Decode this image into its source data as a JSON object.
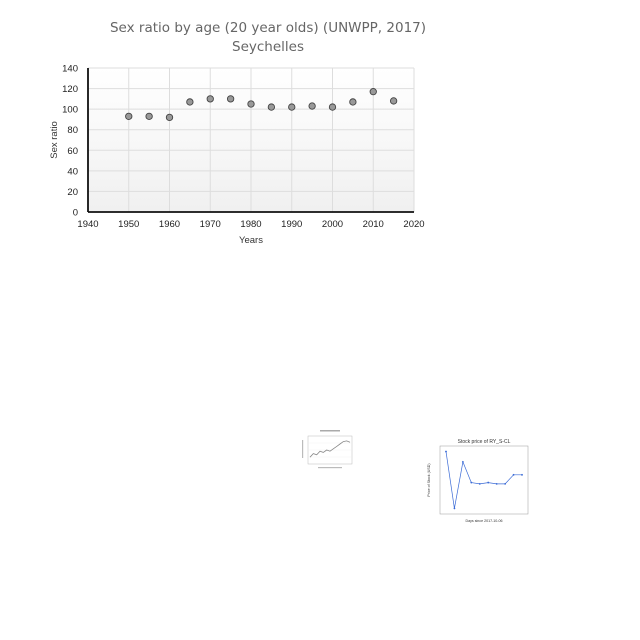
{
  "chart_data": [
    {
      "type": "scatter",
      "title": "Sex ratio by age (20 year olds) (UNWPP, 2017)",
      "subtitle": "Seychelles",
      "xlabel": "Years",
      "ylabel": "Sex ratio",
      "xlim": [
        1940,
        2020
      ],
      "ylim": [
        0,
        140
      ],
      "x_ticks": [
        "1940",
        "1950",
        "1960",
        "1970",
        "1980",
        "1990",
        "2000",
        "2010",
        "2020"
      ],
      "y_ticks": [
        "0",
        "20",
        "40",
        "60",
        "80",
        "100",
        "120",
        "140"
      ],
      "grid": true,
      "x": [
        1950,
        1955,
        1960,
        1965,
        1970,
        1975,
        1980,
        1985,
        1990,
        1995,
        2000,
        2005,
        2010,
        2015
      ],
      "y": [
        93,
        93,
        92,
        107,
        110,
        110,
        105,
        102,
        102,
        103,
        102,
        107,
        117,
        108
      ],
      "marker_color": "#999999"
    },
    {
      "type": "line",
      "title": "",
      "xlabel": "",
      "ylabel": "",
      "y": [
        0.2,
        0.35,
        0.3,
        0.45,
        0.4,
        0.5,
        0.45,
        0.55,
        0.65,
        0.75,
        0.85,
        0.88,
        0.82
      ]
    },
    {
      "type": "line",
      "title": "Stock price of RY_S-CL",
      "xlabel": "Days since 2017-10-06",
      "ylabel": "Price of Stock (USD)",
      "x": [
        0,
        1,
        2,
        3,
        4,
        5,
        6,
        7,
        8,
        9
      ],
      "y": [
        32.52,
        32.08,
        32.44,
        32.28,
        32.27,
        32.28,
        32.27,
        32.27,
        32.34,
        32.34
      ],
      "color": "#3b6bd6"
    }
  ]
}
